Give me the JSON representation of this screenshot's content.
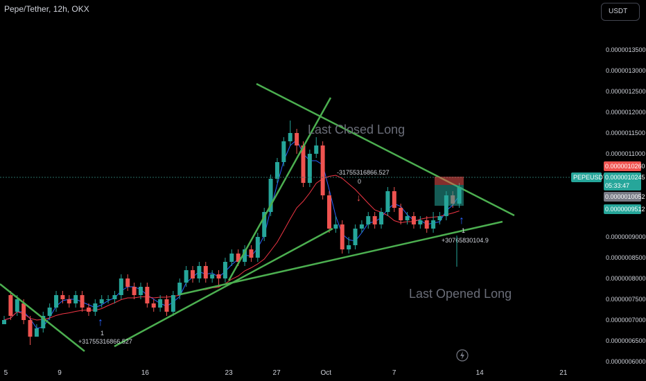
{
  "header": {
    "symbol_title": "Pepe/Tether, 12h, OKX",
    "currency_button": "USDT"
  },
  "colors": {
    "up": "#26a69a",
    "down": "#ef5350",
    "trendline": "#4caf50",
    "ma_fast": "#2962ff",
    "ma_slow": "#f23645",
    "background": "#000000"
  },
  "annotations": {
    "last_closed_long": "Last Closed Long",
    "last_opened_long": "Last Opened Long",
    "signal_short_value": "-31755316866.527",
    "signal_short_zero": "0",
    "signal_long_value_1": "+31755316866.527",
    "signal_long_count_1": "1",
    "signal_long_value_2": "+30765830104.9",
    "signal_long_count_2": "1"
  },
  "price_badges": {
    "symbol_label": "PEPEUSDT",
    "price_red": "0.0000010260",
    "price_green": "0.0000010245",
    "countdown": "05:33:47",
    "price_gray": "0.0000010052",
    "price_green2": "0.0000009512"
  },
  "chart_data": {
    "type": "candlestick",
    "title": "Pepe/Tether, 12h, OKX",
    "y_axis_labels": [
      "0.0000013500",
      "0.0000013000",
      "0.0000012500",
      "0.0000012000",
      "0.0000011500",
      "0.0000011000",
      "0.0000009000",
      "0.0000008500",
      "0.0000008000",
      "0.0000007500",
      "0.0000007000",
      "0.0000006500",
      "0.0000006000"
    ],
    "y_axis_values": [
      13.5,
      13.0,
      12.5,
      12.0,
      11.5,
      11.0,
      9.0,
      8.5,
      8.0,
      7.5,
      7.0,
      6.5,
      6.0
    ],
    "y_unit_note": "values in units of 1e-7 USDT",
    "ylim": [
      6.0,
      14.2
    ],
    "x_tick_labels": [
      "5",
      "9",
      "16",
      "23",
      "27",
      "Oct",
      "7",
      "14",
      "21"
    ],
    "x_tick_index": [
      1,
      10,
      24,
      38,
      46,
      54,
      66,
      80,
      94
    ],
    "candles": [
      [
        6.9,
        7.0,
        7.1,
        6.9
      ],
      [
        7.6,
        7.1,
        7.7,
        7.0
      ],
      [
        7.2,
        7.5,
        7.6,
        7.1
      ],
      [
        7.4,
        7.0,
        7.5,
        6.9
      ],
      [
        7.0,
        6.6,
        7.1,
        6.4
      ],
      [
        6.6,
        6.8,
        6.9,
        6.6
      ],
      [
        6.8,
        7.1,
        7.2,
        6.7
      ],
      [
        7.1,
        7.3,
        7.4,
        7.0
      ],
      [
        7.3,
        7.6,
        7.7,
        7.2
      ],
      [
        7.6,
        7.5,
        7.7,
        7.4
      ],
      [
        7.5,
        7.4,
        7.6,
        7.3
      ],
      [
        7.4,
        7.6,
        7.7,
        7.3
      ],
      [
        7.6,
        7.3,
        7.7,
        7.2
      ],
      [
        7.3,
        7.2,
        7.4,
        7.1
      ],
      [
        7.2,
        7.4,
        7.5,
        7.1
      ],
      [
        7.4,
        7.5,
        7.6,
        7.3
      ],
      [
        7.5,
        7.5,
        7.6,
        7.4
      ],
      [
        7.5,
        7.6,
        7.7,
        7.4
      ],
      [
        7.6,
        8.0,
        8.1,
        7.5
      ],
      [
        8.0,
        7.8,
        8.1,
        7.7
      ],
      [
        7.8,
        7.6,
        7.9,
        7.5
      ],
      [
        7.6,
        7.8,
        7.9,
        7.5
      ],
      [
        7.8,
        7.4,
        7.9,
        7.3
      ],
      [
        7.4,
        7.3,
        7.5,
        7.2
      ],
      [
        7.3,
        7.5,
        7.6,
        7.2
      ],
      [
        7.5,
        7.2,
        7.6,
        7.1
      ],
      [
        7.2,
        7.6,
        7.7,
        7.1
      ],
      [
        7.6,
        7.9,
        8.0,
        7.5
      ],
      [
        7.9,
        8.2,
        8.3,
        7.8
      ],
      [
        8.2,
        8.0,
        8.3,
        7.9
      ],
      [
        8.0,
        8.3,
        8.4,
        7.9
      ],
      [
        8.3,
        8.0,
        8.4,
        7.9
      ],
      [
        8.0,
        8.1,
        8.2,
        7.9
      ],
      [
        8.1,
        8.0,
        8.2,
        7.8
      ],
      [
        8.0,
        8.4,
        8.5,
        7.9
      ],
      [
        8.4,
        8.6,
        8.7,
        8.3
      ],
      [
        8.6,
        8.4,
        8.7,
        8.3
      ],
      [
        8.4,
        8.7,
        8.8,
        8.3
      ],
      [
        8.7,
        8.5,
        8.8,
        8.4
      ],
      [
        8.5,
        9.0,
        9.1,
        8.4
      ],
      [
        9.0,
        9.6,
        9.7,
        8.9
      ],
      [
        9.6,
        10.4,
        10.5,
        9.5
      ],
      [
        10.4,
        10.8,
        10.9,
        10.3
      ],
      [
        10.8,
        11.3,
        11.4,
        10.7
      ],
      [
        11.3,
        11.5,
        11.8,
        11.2
      ],
      [
        11.5,
        11.2,
        11.6,
        11.0
      ],
      [
        11.2,
        10.3,
        11.3,
        10.2
      ],
      [
        10.3,
        11.0,
        11.1,
        10.2
      ],
      [
        11.0,
        11.2,
        11.4,
        10.9
      ],
      [
        11.2,
        10.0,
        11.3,
        9.9
      ],
      [
        10.0,
        9.2,
        10.1,
        9.1
      ],
      [
        9.2,
        9.3,
        9.5,
        9.1
      ],
      [
        9.3,
        8.7,
        9.4,
        8.6
      ],
      [
        8.7,
        8.8,
        9.0,
        8.6
      ],
      [
        8.8,
        9.2,
        9.3,
        8.7
      ],
      [
        9.2,
        9.3,
        9.4,
        9.1
      ],
      [
        9.3,
        9.5,
        9.6,
        9.2
      ],
      [
        9.5,
        9.3,
        9.6,
        9.2
      ],
      [
        9.3,
        9.6,
        9.7,
        9.2
      ],
      [
        9.6,
        10.1,
        10.2,
        9.5
      ],
      [
        10.1,
        9.7,
        10.2,
        9.6
      ],
      [
        9.7,
        9.4,
        9.8,
        9.3
      ],
      [
        9.4,
        9.5,
        9.6,
        9.3
      ],
      [
        9.5,
        9.3,
        9.6,
        9.2
      ],
      [
        9.3,
        9.4,
        9.5,
        9.2
      ],
      [
        9.4,
        9.2,
        9.5,
        9.1
      ],
      [
        9.2,
        9.4,
        9.6,
        9.1
      ],
      [
        9.4,
        9.5,
        9.6,
        9.3
      ],
      [
        9.5,
        10.0,
        10.1,
        9.4
      ],
      [
        10.0,
        9.8,
        10.1,
        9.7
      ],
      [
        9.8,
        10.2,
        10.3,
        9.7
      ]
    ],
    "x_range": [
      0,
      100
    ]
  }
}
